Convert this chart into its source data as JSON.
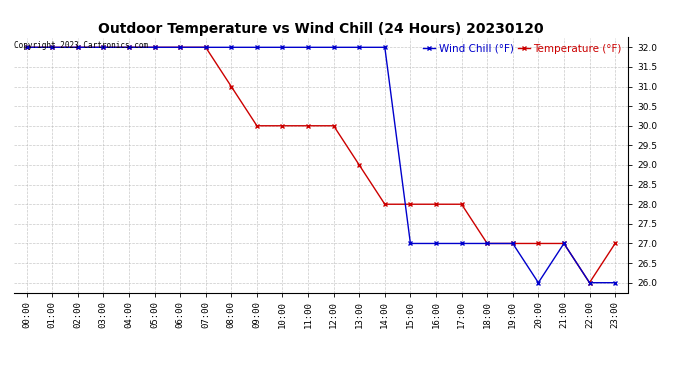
{
  "title": "Outdoor Temperature vs Wind Chill (24 Hours) 20230120",
  "copyright": "Copyright 2023 Cartronics.com",
  "legend_wind_chill": "Wind Chill (°F)",
  "legend_temperature": "Temperature (°F)",
  "x_labels": [
    "00:00",
    "01:00",
    "02:00",
    "03:00",
    "04:00",
    "05:00",
    "06:00",
    "07:00",
    "08:00",
    "09:00",
    "10:00",
    "11:00",
    "12:00",
    "13:00",
    "14:00",
    "15:00",
    "16:00",
    "17:00",
    "18:00",
    "19:00",
    "20:00",
    "21:00",
    "22:00",
    "23:00"
  ],
  "temperature": [
    32.0,
    32.0,
    32.0,
    32.0,
    32.0,
    32.0,
    32.0,
    32.0,
    31.0,
    30.0,
    30.0,
    30.0,
    30.0,
    29.0,
    28.0,
    28.0,
    28.0,
    28.0,
    27.0,
    27.0,
    27.0,
    27.0,
    26.0,
    27.0
  ],
  "wind_chill": [
    32.0,
    32.0,
    32.0,
    32.0,
    32.0,
    32.0,
    32.0,
    32.0,
    32.0,
    32.0,
    32.0,
    32.0,
    32.0,
    32.0,
    32.0,
    27.0,
    27.0,
    27.0,
    27.0,
    27.0,
    26.0,
    27.0,
    26.0,
    26.0
  ],
  "temp_color": "#cc0000",
  "wind_color": "#0000cc",
  "marker": "x",
  "ylim": [
    25.75,
    32.25
  ],
  "yticks": [
    26.0,
    26.5,
    27.0,
    27.5,
    28.0,
    28.5,
    29.0,
    29.5,
    30.0,
    30.5,
    31.0,
    31.5,
    32.0
  ],
  "background_color": "#ffffff",
  "grid_color": "#bbbbbb",
  "title_fontsize": 10,
  "tick_fontsize": 6.5,
  "legend_fontsize": 7.5
}
